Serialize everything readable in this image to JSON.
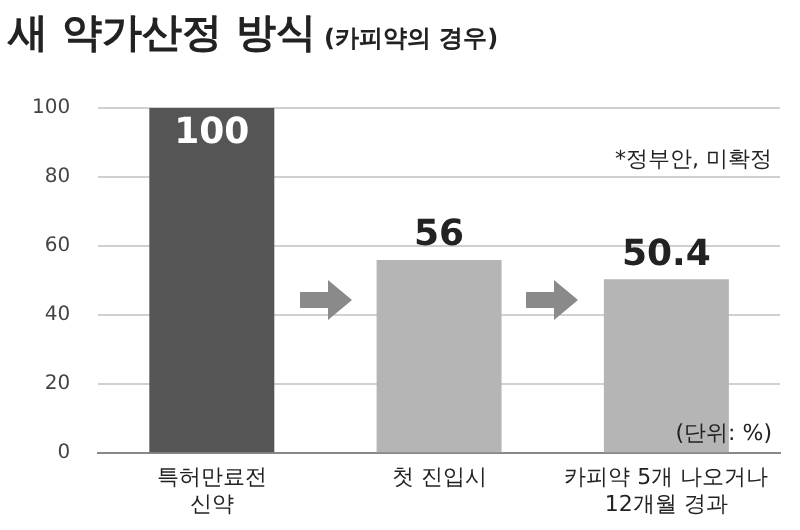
{
  "chart_data": {
    "type": "bar",
    "title": "새 약가산정 방식",
    "subtitle": "(카피약의 경우)",
    "categories": [
      "특허만료전\n신약",
      "첫 진입시",
      "카피약 5개 나오거나\n12개월 경과"
    ],
    "values": [
      100,
      56,
      50.4
    ],
    "colors": [
      "#555555",
      "#b5b5b5",
      "#b5b5b5"
    ],
    "ylim": [
      0,
      100
    ],
    "yticks": [
      0,
      20,
      40,
      60,
      80,
      100
    ],
    "grid": "y",
    "data_labels": true,
    "legend": false,
    "annotations": [
      "*정부안, 미확정",
      "(단위: %)"
    ]
  }
}
